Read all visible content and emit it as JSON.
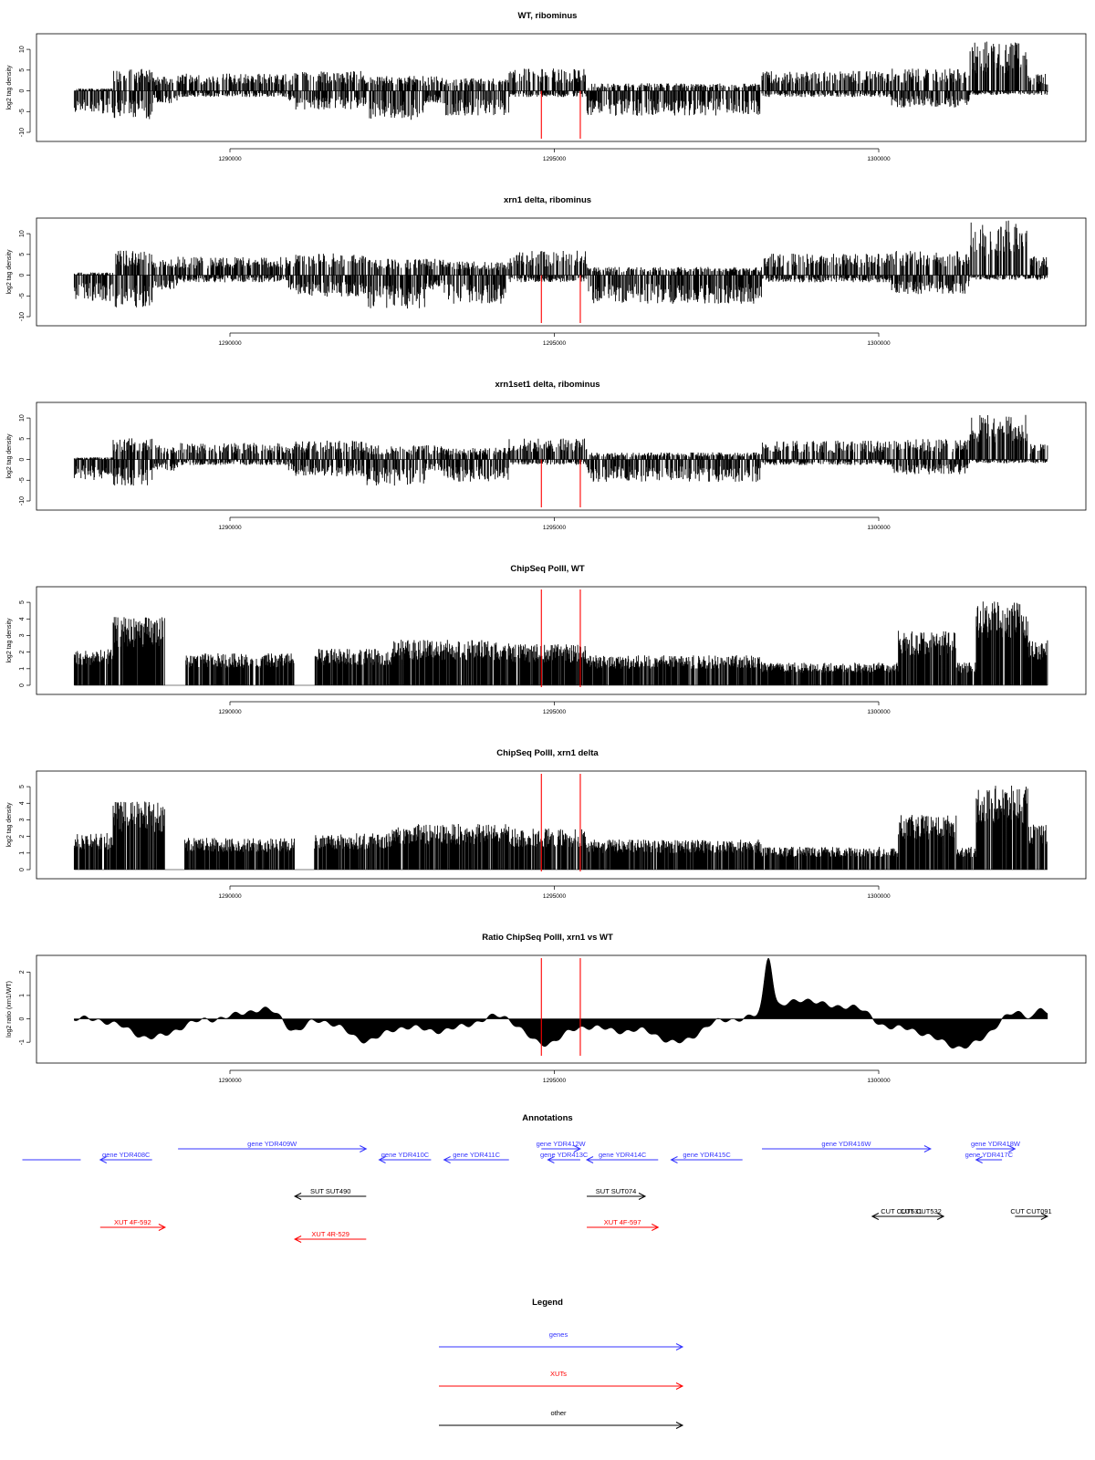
{
  "panels": [
    {
      "title": "WT, ribominus",
      "ylabel": "log2 tag density",
      "yticks": [
        "10",
        "5",
        "0",
        "-5",
        "-10"
      ],
      "ylim": [
        -10,
        12
      ],
      "mode": "signed"
    },
    {
      "title": "xrn1 delta, ribominus",
      "ylabel": "log2 tag density",
      "yticks": [
        "10",
        "5",
        "0",
        "-5",
        "-10"
      ],
      "ylim": [
        -10,
        12
      ],
      "mode": "signed"
    },
    {
      "title": "xrn1set1 delta, ribominus",
      "ylabel": "log2 tag density",
      "yticks": [
        "10",
        "5",
        "0",
        "-5",
        "-10"
      ],
      "ylim": [
        -10,
        12
      ],
      "mode": "signed"
    },
    {
      "title": "ChipSeq PolII, WT",
      "ylabel": "log2 tag density",
      "yticks": [
        "0",
        "1",
        "2",
        "3",
        "4",
        "5"
      ],
      "ylim": [
        0,
        5.5
      ],
      "mode": "positive"
    },
    {
      "title": "ChipSeq PolII, xrn1 delta",
      "ylabel": "log2 tag density",
      "yticks": [
        "0",
        "1",
        "2",
        "3",
        "4",
        "5"
      ],
      "ylim": [
        0,
        5.5
      ],
      "mode": "positive"
    },
    {
      "title": "Ratio ChipSeq PolII, xrn1 vs WT",
      "ylabel": "log2 ratio (xrn1/WT)",
      "yticks": [
        "2",
        "1",
        "0",
        "-1"
      ],
      "ylim": [
        -1.5,
        2.4
      ],
      "mode": "ratio"
    }
  ],
  "x_axis": {
    "ticks": [
      1290000,
      1295000,
      1300000
    ],
    "tick_labels": [
      "1290000",
      "1295000",
      "1300000"
    ],
    "xlim": [
      1287600,
      1302600
    ],
    "red_markers": [
      1294800,
      1295400
    ]
  },
  "annotations": {
    "title": "Annotations",
    "features": [
      {
        "label": "",
        "start": 1286800,
        "end": 1287700,
        "row": 1,
        "strand": "-",
        "type": "gene"
      },
      {
        "label": "gene YDR408C",
        "start": 1288000,
        "end": 1288800,
        "row": 1,
        "strand": "-",
        "type": "gene"
      },
      {
        "label": "gene YDR409W",
        "start": 1289200,
        "end": 1292100,
        "row": 0,
        "strand": "+",
        "type": "gene"
      },
      {
        "label": "gene YDR410C",
        "start": 1292300,
        "end": 1293100,
        "row": 1,
        "strand": "-",
        "type": "gene"
      },
      {
        "label": "gene YDR411C",
        "start": 1293300,
        "end": 1294300,
        "row": 1,
        "strand": "-",
        "type": "gene"
      },
      {
        "label": "gene YDR412W",
        "start": 1294800,
        "end": 1295400,
        "row": 0,
        "strand": "+",
        "type": "gene"
      },
      {
        "label": "gene YDR413C",
        "start": 1294900,
        "end": 1295400,
        "row": 1,
        "strand": "-",
        "type": "gene"
      },
      {
        "label": "gene YDR414C",
        "start": 1295500,
        "end": 1296600,
        "row": 1,
        "strand": "-",
        "type": "gene"
      },
      {
        "label": "gene YDR415C",
        "start": 1296800,
        "end": 1297900,
        "row": 1,
        "strand": "-",
        "type": "gene"
      },
      {
        "label": "gene YDR416W",
        "start": 1298200,
        "end": 1300800,
        "row": 0,
        "strand": "+",
        "type": "gene"
      },
      {
        "label": "gene YDR418W",
        "start": 1301500,
        "end": 1302100,
        "row": 0,
        "strand": "+",
        "type": "gene"
      },
      {
        "label": "gene YDR417C",
        "start": 1301500,
        "end": 1301900,
        "row": 1,
        "strand": "-",
        "type": "gene"
      },
      {
        "label": "SUT SUT490",
        "start": 1291000,
        "end": 1292100,
        "row": 2,
        "strand": "-",
        "type": "other"
      },
      {
        "label": "SUT SUT074",
        "start": 1295500,
        "end": 1296400,
        "row": 2,
        "strand": "+",
        "type": "other"
      },
      {
        "label": "CUT CUT531",
        "start": 1299900,
        "end": 1300800,
        "row": 3,
        "strand": "-",
        "type": "other"
      },
      {
        "label": "CUT CUT532",
        "start": 1300300,
        "end": 1301000,
        "row": 3,
        "strand": "+",
        "type": "other"
      },
      {
        "label": "CUT CUT091",
        "start": 1302100,
        "end": 1302600,
        "row": 3,
        "strand": "+",
        "type": "other"
      },
      {
        "label": "XUT 4F-592",
        "start": 1288000,
        "end": 1289000,
        "row": 4,
        "strand": "+",
        "type": "xut"
      },
      {
        "label": "XUT 4R-529",
        "start": 1291000,
        "end": 1292100,
        "row": 5,
        "strand": "-",
        "type": "xut"
      },
      {
        "label": "XUT 4F-597",
        "start": 1295500,
        "end": 1296600,
        "row": 4,
        "strand": "+",
        "type": "xut"
      }
    ]
  },
  "legend": {
    "title": "Legend",
    "items": [
      {
        "label": "genes",
        "color": "#3333ff"
      },
      {
        "label": "XUTs",
        "color": "#ff0000"
      },
      {
        "label": "other",
        "color": "#000000"
      }
    ]
  },
  "colors": {
    "gene": "#3333ff",
    "xut": "#ff0000",
    "other": "#000000",
    "marker": "#ff0000",
    "signal": "#000000"
  }
}
